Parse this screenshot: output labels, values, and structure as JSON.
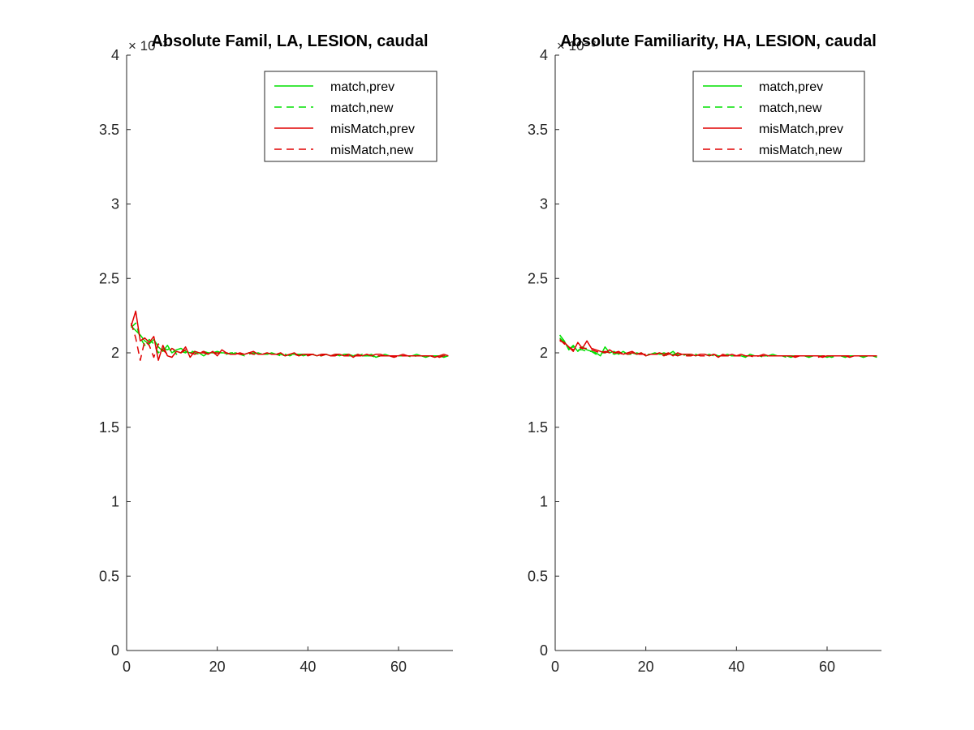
{
  "colors": {
    "match": "#00e000",
    "misMatch": "#e00000",
    "axis": "#262626",
    "background": "#ffffff"
  },
  "chart_data": [
    {
      "type": "line",
      "title": "Absolute Famil, LA, LESION, caudal",
      "exponent_label": "× 10⁻³",
      "xlim": [
        0,
        72
      ],
      "ylim": [
        0,
        4
      ],
      "xticks": [
        "0",
        "20",
        "40",
        "60"
      ],
      "yticks": [
        "0",
        "0.5",
        "1",
        "1.5",
        "2",
        "2.5",
        "3",
        "3.5",
        "4"
      ],
      "legend": {
        "position": "top-right",
        "entries": [
          "match,prev",
          "match,new",
          "misMatch,prev",
          "misMatch,new"
        ]
      },
      "series": [
        {
          "name": "match,prev",
          "color": "#00e000",
          "dash": false,
          "values": [
            2.18,
            2.15,
            2.12,
            2.08,
            2.06,
            2.09,
            2.04,
            2.01,
            2.05,
            2.0,
            2.02,
            2.03,
            2.01,
            2.0,
            2.01,
            2.0,
            1.98,
            2.0,
            2.0,
            2.01,
            2.0,
            2.0,
            1.99,
            2.0,
            1.99,
            1.99,
            2.0,
            1.99,
            2.0,
            1.99,
            1.99,
            2.0,
            1.99,
            1.99,
            1.98,
            1.99,
            1.99,
            1.99,
            1.98,
            1.99,
            1.99,
            1.98,
            1.99,
            1.99,
            1.98,
            1.99,
            1.98,
            1.99,
            1.99,
            1.98,
            1.99,
            1.98,
            1.98,
            1.99,
            1.97,
            1.98,
            1.99,
            1.98,
            1.98,
            1.98,
            1.98,
            1.98,
            1.98,
            1.99,
            1.98,
            1.97,
            1.98,
            1.98,
            1.98,
            1.97,
            1.98
          ]
        },
        {
          "name": "match,new",
          "color": "#00e000",
          "dash": true,
          "values": [
            2.17,
            2.2,
            2.1,
            2.05,
            2.09,
            2.06,
            2.0,
            2.03,
            2.02,
            2.04,
            1.99,
            2.01,
            2.0,
            2.02,
            2.0,
            1.99,
            2.01,
            2.0,
            1.99,
            2.0,
            2.0,
            1.99,
            2.0,
            2.0,
            1.99,
            1.98,
            1.99,
            2.0,
            1.99,
            1.99,
            1.99,
            1.99,
            1.99,
            1.98,
            1.99,
            1.98,
            1.99,
            1.99,
            1.99,
            1.98,
            1.99,
            1.98,
            1.98,
            1.99,
            1.98,
            1.98,
            1.99,
            1.98,
            1.98,
            1.98,
            1.98,
            1.99,
            1.98,
            1.98,
            1.97,
            1.98,
            1.98,
            1.98,
            1.98,
            1.98,
            1.98,
            1.98,
            1.97,
            1.98,
            1.98,
            1.98,
            1.98,
            1.97,
            1.98,
            1.98,
            1.97
          ]
        },
        {
          "name": "misMatch,prev",
          "color": "#e00000",
          "dash": false,
          "values": [
            2.18,
            2.28,
            2.08,
            2.1,
            2.07,
            2.11,
            1.95,
            2.05,
            1.98,
            1.97,
            2.01,
            2.0,
            2.04,
            1.97,
            2.01,
            2.0,
            2.0,
            1.99,
            2.01,
            1.98,
            2.02,
            2.0,
            1.99,
            1.99,
            2.0,
            1.99,
            2.0,
            2.01,
            1.99,
            1.99,
            2.0,
            1.99,
            1.99,
            2.0,
            1.98,
            1.99,
            2.0,
            1.98,
            1.99,
            1.99,
            1.99,
            1.98,
            1.99,
            1.99,
            1.98,
            1.99,
            1.99,
            1.98,
            1.99,
            1.97,
            1.99,
            1.98,
            1.99,
            1.98,
            1.99,
            1.99,
            1.98,
            1.98,
            1.98,
            1.98,
            1.99,
            1.98,
            1.98,
            1.98,
            1.98,
            1.98,
            1.98,
            1.97,
            1.98,
            1.99,
            1.98
          ]
        },
        {
          "name": "misMatch,new",
          "color": "#e00000",
          "dash": true,
          "values": [
            2.2,
            2.1,
            1.95,
            2.08,
            2.05,
            1.97,
            2.06,
            2.02,
            1.99,
            2.03,
            2.01,
            2.0,
            2.02,
            2.0,
            1.99,
            2.0,
            2.01,
            1.99,
            2.0,
            2.0,
            1.99,
            2.0,
            1.99,
            2.0,
            1.99,
            1.99,
            2.0,
            1.99,
            1.99,
            1.99,
            2.0,
            1.99,
            1.99,
            1.99,
            1.98,
            1.99,
            1.99,
            1.98,
            1.99,
            1.98,
            1.99,
            1.99,
            1.98,
            1.99,
            1.98,
            1.98,
            1.99,
            1.98,
            1.98,
            1.98,
            1.98,
            1.98,
            1.99,
            1.98,
            1.98,
            1.98,
            1.98,
            1.98,
            1.97,
            1.98,
            1.98,
            1.98,
            1.98,
            1.98,
            1.98,
            1.98,
            1.98,
            1.98,
            1.97,
            1.98,
            1.98
          ]
        }
      ]
    },
    {
      "type": "line",
      "title": "Absolute Familiarity, HA, LESION, caudal",
      "exponent_label": "× 10⁻³",
      "xlim": [
        0,
        72
      ],
      "ylim": [
        0,
        4
      ],
      "xticks": [
        "0",
        "20",
        "40",
        "60"
      ],
      "yticks": [
        "0",
        "0.5",
        "1",
        "1.5",
        "2",
        "2.5",
        "3",
        "3.5",
        "4"
      ],
      "legend": {
        "position": "top-right",
        "entries": [
          "match,prev",
          "match,new",
          "misMatch,prev",
          "misMatch,new"
        ]
      },
      "series": [
        {
          "name": "match,prev",
          "color": "#00e000",
          "dash": false,
          "values": [
            2.12,
            2.08,
            2.02,
            2.05,
            2.01,
            2.04,
            2.02,
            2.01,
            2.0,
            1.98,
            2.04,
            2.0,
            2.01,
            1.99,
            2.01,
            1.99,
            2.0,
            1.99,
            2.0,
            1.98,
            1.99,
            2.0,
            1.99,
            2.0,
            1.99,
            2.01,
            1.98,
            1.99,
            1.99,
            1.99,
            1.98,
            1.99,
            1.99,
            1.98,
            1.99,
            1.98,
            1.98,
            1.99,
            1.98,
            1.98,
            1.98,
            1.97,
            1.99,
            1.98,
            1.98,
            1.98,
            1.98,
            1.99,
            1.98,
            1.98,
            1.98,
            1.97,
            1.98,
            1.98,
            1.98,
            1.97,
            1.98,
            1.98,
            1.98,
            1.97,
            1.98,
            1.98,
            1.98,
            1.97,
            1.98,
            1.98,
            1.98,
            1.97,
            1.98,
            1.98,
            1.97
          ]
        },
        {
          "name": "match,new",
          "color": "#00e000",
          "dash": true,
          "values": [
            2.1,
            2.07,
            2.03,
            2.04,
            2.02,
            2.02,
            2.01,
            2.01,
            1.99,
            2.0,
            2.0,
            2.01,
            1.99,
            2.0,
            2.0,
            1.99,
            1.99,
            2.0,
            1.99,
            1.99,
            1.99,
            1.99,
            1.99,
            1.99,
            1.98,
            1.99,
            1.99,
            1.98,
            1.99,
            1.98,
            1.99,
            1.98,
            1.98,
            1.99,
            1.98,
            1.98,
            1.98,
            1.98,
            1.98,
            1.98,
            1.98,
            1.98,
            1.98,
            1.98,
            1.98,
            1.97,
            1.98,
            1.98,
            1.98,
            1.98,
            1.97,
            1.98,
            1.98,
            1.98,
            1.98,
            1.97,
            1.98,
            1.98,
            1.98,
            1.98,
            1.97,
            1.98,
            1.98,
            1.97,
            1.98,
            1.98,
            1.98,
            1.97,
            1.98,
            1.98,
            1.98
          ]
        },
        {
          "name": "misMatch,prev",
          "color": "#e00000",
          "dash": false,
          "values": [
            2.08,
            2.07,
            2.04,
            2.01,
            2.07,
            2.03,
            2.08,
            2.03,
            2.02,
            2.01,
            2.0,
            2.02,
            2.0,
            2.01,
            1.99,
            2.0,
            2.01,
            1.99,
            2.0,
            1.98,
            1.99,
            1.99,
            2.0,
            1.99,
            2.0,
            1.98,
            2.0,
            1.99,
            1.99,
            1.99,
            1.98,
            1.99,
            1.99,
            1.98,
            1.99,
            1.97,
            1.99,
            1.98,
            1.99,
            1.98,
            1.99,
            1.98,
            1.98,
            1.98,
            1.98,
            1.99,
            1.98,
            1.98,
            1.98,
            1.98,
            1.98,
            1.98,
            1.97,
            1.98,
            1.98,
            1.98,
            1.98,
            1.98,
            1.97,
            1.98,
            1.98,
            1.98,
            1.98,
            1.98,
            1.97,
            1.98,
            1.98,
            1.98,
            1.98,
            1.98,
            1.98
          ]
        },
        {
          "name": "misMatch,new",
          "color": "#e00000",
          "dash": true,
          "values": [
            2.09,
            2.06,
            2.04,
            2.02,
            2.04,
            2.03,
            2.03,
            2.02,
            2.01,
            2.0,
            2.01,
            2.0,
            2.0,
            2.0,
            1.99,
            1.99,
            2.0,
            1.99,
            1.99,
            1.99,
            1.99,
            1.99,
            1.99,
            1.98,
            1.99,
            1.99,
            1.98,
            1.99,
            1.98,
            1.98,
            1.99,
            1.98,
            1.98,
            1.98,
            1.99,
            1.98,
            1.98,
            1.98,
            1.98,
            1.98,
            1.98,
            1.98,
            1.98,
            1.97,
            1.98,
            1.98,
            1.98,
            1.98,
            1.98,
            1.98,
            1.98,
            1.98,
            1.98,
            1.98,
            1.98,
            1.98,
            1.98,
            1.97,
            1.98,
            1.98,
            1.98,
            1.98,
            1.98,
            1.98,
            1.98,
            1.98,
            1.98,
            1.98,
            1.98,
            1.98,
            1.98
          ]
        }
      ]
    }
  ]
}
